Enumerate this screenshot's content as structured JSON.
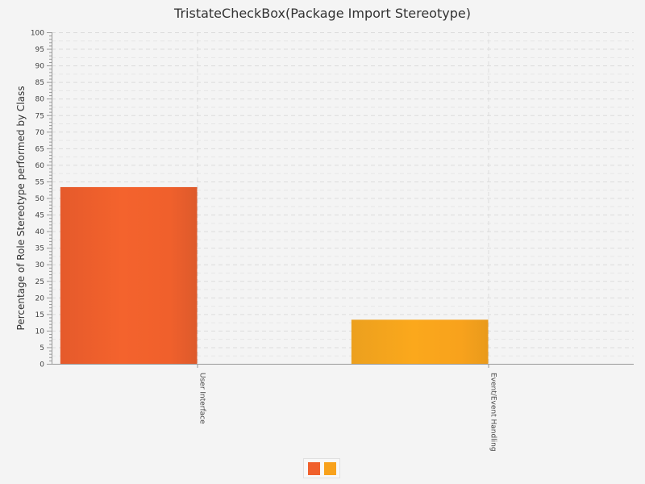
{
  "chart_data": {
    "type": "bar",
    "title": "TristateCheckBox(Package Import Stereotype)",
    "ylabel": "Percentage of Role Stereotype performed by Class",
    "xlabel": "",
    "ylim": [
      0,
      100
    ],
    "y_ticks": [
      0,
      5,
      10,
      15,
      20,
      25,
      30,
      35,
      40,
      45,
      50,
      55,
      60,
      65,
      70,
      75,
      80,
      85,
      90,
      95,
      100
    ],
    "categories": [
      "User Interface",
      "Event/Event Handling"
    ],
    "values": [
      53.3,
      13.3
    ],
    "colors": [
      "#f0602c",
      "#f8a21c"
    ],
    "grid": true,
    "legend": "bottom-center"
  }
}
